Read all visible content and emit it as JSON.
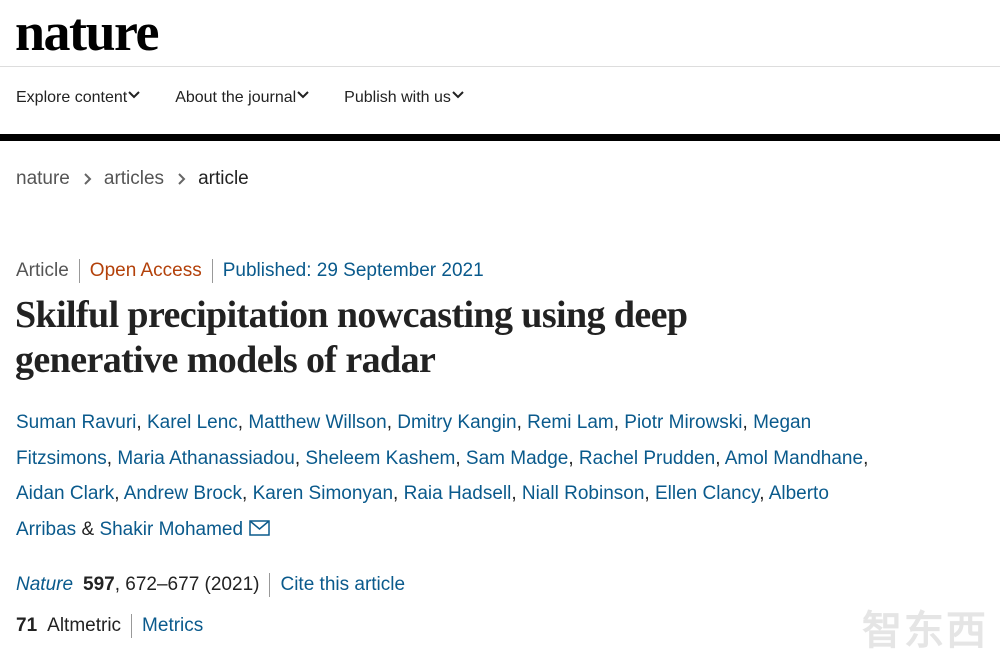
{
  "header": {
    "logo": "nature",
    "nav": [
      "Explore content",
      "About the journal",
      "Publish with us"
    ]
  },
  "breadcrumb": [
    "nature",
    "articles",
    "article"
  ],
  "article": {
    "type": "Article",
    "access": "Open Access",
    "published": "Published: 29 September 2021",
    "title": "Skilful precipitation nowcasting using deep generative models of radar",
    "authors": [
      "Suman Ravuri",
      "Karel Lenc",
      "Matthew Willson",
      "Dmitry Kangin",
      "Remi Lam",
      "Piotr Mirowski",
      "Megan Fitzsimons",
      "Maria Athanassiadou",
      "Sheleem Kashem",
      "Sam Madge",
      "Rachel Prudden",
      "Amol Mandhane",
      "Aidan Clark",
      "Andrew Brock",
      "Karen Simonyan",
      "Raia Hadsell",
      "Niall Robinson",
      "Ellen Clancy",
      "Alberto Arribas",
      "Shakir Mohamed"
    ],
    "author_separator": ",",
    "last_author_separator": "&",
    "citation": {
      "journal": "Nature",
      "volume": "597",
      "pages": ", 672–677 (2021)",
      "cite_link": "Cite this article"
    },
    "metrics": {
      "altmetric_score": "71",
      "altmetric_label": "Altmetric",
      "metrics_link": "Metrics"
    }
  },
  "watermark": "智东西"
}
